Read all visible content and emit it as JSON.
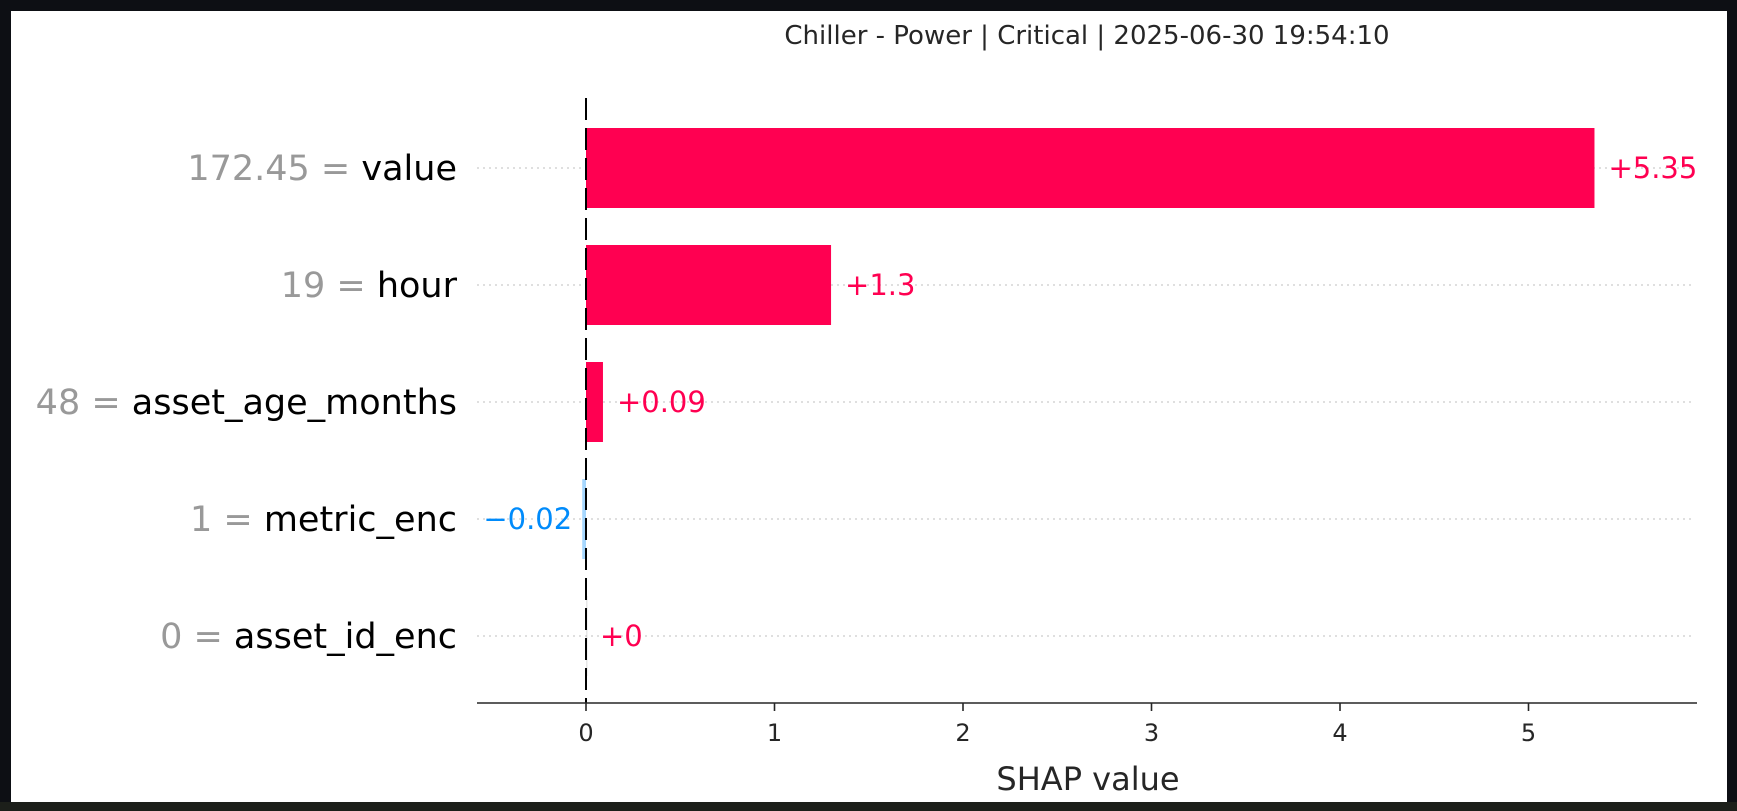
{
  "chart_data": {
    "type": "bar",
    "orientation": "horizontal",
    "title": "Chiller - Power | Critical | 2025-06-30 19:54:10",
    "xlabel": "SHAP value",
    "ylabel": "",
    "xlim": [
      -0.58,
      5.9
    ],
    "xticks": [
      "0",
      "1",
      "2",
      "3",
      "4",
      "5"
    ],
    "grid": false,
    "features": [
      {
        "value": "172.45",
        "name": "value",
        "shap": 5.35,
        "label": "+5.35"
      },
      {
        "value": "19",
        "name": "hour",
        "shap": 1.3,
        "label": "+1.3"
      },
      {
        "value": "48",
        "name": "asset_age_months",
        "shap": 0.09,
        "label": "+0.09"
      },
      {
        "value": "1",
        "name": "metric_enc",
        "shap": -0.02,
        "label": "−0.02"
      },
      {
        "value": "0",
        "name": "asset_id_enc",
        "shap": 0,
        "label": "+0"
      }
    ],
    "colors": {
      "positive": "#ff0051",
      "negative": "#008bfb",
      "axis": "#262626",
      "feature_value": "#999999"
    }
  }
}
